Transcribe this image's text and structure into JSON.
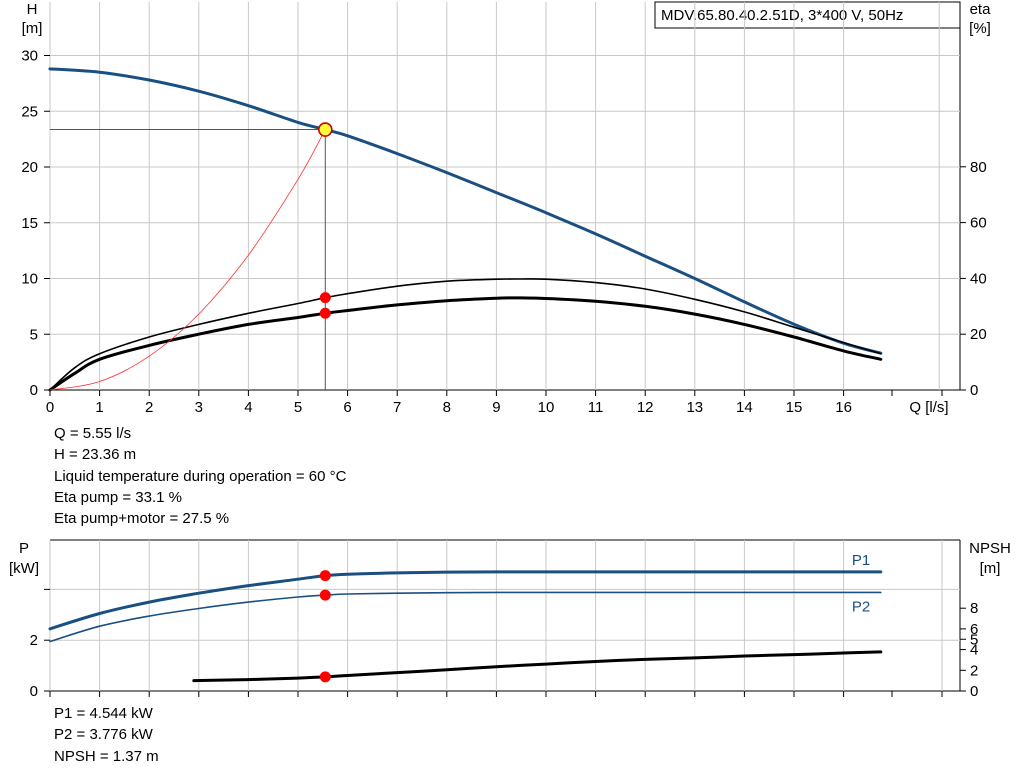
{
  "chart_data": [
    {
      "type": "line",
      "title": "MDV.65.80.40.2.51D, 3*400 V, 50Hz",
      "xlabel": "Q [l/s]",
      "ylabel_left": [
        "H",
        "[m]"
      ],
      "ylabel_right": [
        "eta",
        "[%]"
      ],
      "xlim": [
        0,
        18
      ],
      "ylim_left": [
        0,
        30
      ],
      "ylim_right": [
        0,
        125
      ],
      "x_ticks": [
        "0",
        "1",
        "2",
        "3",
        "4",
        "5",
        "6",
        "7",
        "8",
        "9",
        "10",
        "11",
        "12",
        "13",
        "14",
        "15",
        "16"
      ],
      "y_ticks_left": [
        "0",
        "5",
        "10",
        "15",
        "20",
        "25",
        "30"
      ],
      "y_ticks_right": [
        "0",
        "20",
        "40",
        "60",
        "80"
      ],
      "grid": true,
      "series": [
        {
          "color": "#1a4f82",
          "axis": "left",
          "x": [
            0,
            1,
            2,
            3,
            4,
            5,
            5.55,
            6,
            7,
            8,
            9,
            10,
            11,
            12,
            13,
            14,
            15,
            16,
            16.75
          ],
          "y": [
            28.8,
            28.5,
            27.8,
            26.8,
            25.5,
            24.0,
            23.36,
            22.8,
            21.2,
            19.5,
            17.7,
            15.9,
            14.0,
            12.0,
            10.0,
            7.9,
            5.9,
            4.2,
            3.3
          ]
        },
        {
          "color": "#000000",
          "axis": "right",
          "x": [
            0,
            0.5,
            1,
            2,
            3,
            4,
            5,
            5.55,
            6,
            7,
            8,
            9,
            9.5,
            10,
            11,
            12,
            13,
            14,
            15,
            16,
            16.75
          ],
          "y": [
            0,
            8,
            13,
            19,
            23.5,
            27.5,
            31,
            33.1,
            34.5,
            37.2,
            39,
            39.7,
            39.8,
            39.7,
            38.5,
            36.2,
            32.5,
            28,
            22.5,
            17,
            13
          ]
        },
        {
          "color": "#000000",
          "axis": "right",
          "x": [
            0,
            0.5,
            1,
            2,
            3,
            4,
            5,
            5.55,
            6,
            7,
            8,
            9,
            9.5,
            10,
            11,
            12,
            13,
            14,
            15,
            16,
            16.75
          ],
          "y": [
            0,
            6,
            11,
            16,
            20,
            23.5,
            26,
            27.5,
            28.5,
            30.5,
            32,
            32.9,
            33,
            32.8,
            31.8,
            30,
            27.2,
            23.5,
            19,
            14,
            11
          ]
        },
        {
          "color": "#ff3030",
          "axis": "left",
          "x": [
            0,
            1,
            2,
            3,
            4,
            5,
            5.55
          ],
          "y": [
            0,
            0.76,
            3.03,
            6.82,
            12.1,
            18.9,
            23.36
          ]
        }
      ],
      "operating_point": {
        "x": 5.55,
        "y": 23.36
      },
      "eta_markers": [
        33.1,
        27.5
      ]
    },
    {
      "type": "line",
      "ylabel_left": [
        "P",
        "[kW]"
      ],
      "ylabel_right": [
        "NPSH",
        "[m]"
      ],
      "xlim": [
        0,
        18
      ],
      "ylim_left": [
        0,
        6
      ],
      "ylim_right": [
        0,
        11.5
      ],
      "y_ticks_left": [
        "0",
        "2"
      ],
      "y_ticks_right": [
        "0",
        "2",
        "4",
        "5",
        "6",
        "8"
      ],
      "grid": true,
      "series": [
        {
          "name": "P1",
          "color": "#1a4f82",
          "axis": "left",
          "x": [
            0,
            1,
            2,
            3,
            4,
            5,
            5.55,
            6,
            7,
            8,
            9,
            10,
            11,
            12,
            13,
            14,
            15,
            16,
            16.75
          ],
          "y": [
            2.45,
            3.05,
            3.5,
            3.85,
            4.15,
            4.4,
            4.544,
            4.6,
            4.65,
            4.68,
            4.69,
            4.69,
            4.69,
            4.69,
            4.69,
            4.69,
            4.69,
            4.69,
            4.69
          ]
        },
        {
          "name": "P2",
          "color": "#1a4f82",
          "axis": "left",
          "x": [
            0,
            1,
            2,
            3,
            4,
            5,
            5.55,
            6,
            7,
            8,
            9,
            10,
            11,
            12,
            13,
            14,
            15,
            16,
            16.75
          ],
          "y": [
            1.95,
            2.55,
            2.95,
            3.25,
            3.5,
            3.7,
            3.776,
            3.82,
            3.85,
            3.87,
            3.88,
            3.88,
            3.88,
            3.88,
            3.88,
            3.88,
            3.88,
            3.88,
            3.88
          ]
        },
        {
          "name": "NPSH",
          "color": "#000000",
          "axis": "right",
          "x": [
            2.9,
            4,
            5,
            5.55,
            6,
            7,
            8,
            9,
            10,
            11,
            12,
            13,
            14,
            15,
            16,
            16.75
          ],
          "y": [
            1.0,
            1.1,
            1.25,
            1.37,
            1.5,
            1.78,
            2.05,
            2.35,
            2.6,
            2.85,
            3.05,
            3.2,
            3.38,
            3.52,
            3.67,
            3.78
          ]
        }
      ],
      "markers": [
        {
          "axis": "left",
          "x": 5.55,
          "y": 4.544
        },
        {
          "axis": "left",
          "x": 5.55,
          "y": 3.776
        },
        {
          "axis": "right",
          "x": 5.55,
          "y": 1.37
        }
      ]
    }
  ],
  "info_upper": [
    "Q = 5.55 l/s",
    "H = 23.36 m",
    "Liquid temperature during operation = 60 °C",
    "Eta pump = 33.1 %",
    "Eta pump+motor = 27.5 %"
  ],
  "info_lower": [
    "P1 = 4.544 kW",
    "P2 = 3.776 kW",
    "NPSH = 1.37 m"
  ]
}
